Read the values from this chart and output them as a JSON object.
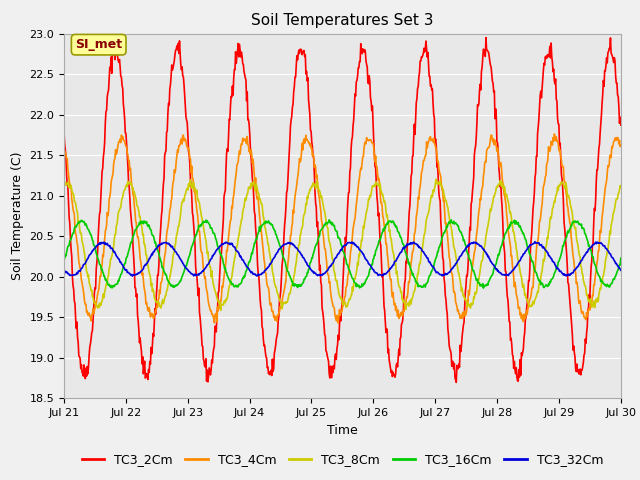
{
  "title": "Soil Temperatures Set 3",
  "xlabel": "Time",
  "ylabel": "Soil Temperature (C)",
  "ylim": [
    18.5,
    23.0
  ],
  "x_tick_labels": [
    "Jul 21",
    "Jul 22",
    "Jul 23",
    "Jul 24",
    "Jul 25",
    "Jul 26",
    "Jul 27",
    "Jul 28",
    "Jul 29",
    "Jul 30"
  ],
  "yticks": [
    18.5,
    19.0,
    19.5,
    20.0,
    20.5,
    21.0,
    21.5,
    22.0,
    22.5,
    23.0
  ],
  "series": [
    {
      "name": "TC3_2Cm",
      "color": "#ff0000",
      "amplitude": 2.0,
      "mean": 20.8,
      "phase_shift": 0.0,
      "linewidth": 1.2
    },
    {
      "name": "TC3_4Cm",
      "color": "#ff8c00",
      "amplitude": 1.1,
      "mean": 20.6,
      "phase_shift": 0.1,
      "linewidth": 1.2
    },
    {
      "name": "TC3_8Cm",
      "color": "#cccc00",
      "amplitude": 0.75,
      "mean": 20.4,
      "phase_shift": 0.22,
      "linewidth": 1.2
    },
    {
      "name": "TC3_16Cm",
      "color": "#00cc00",
      "amplitude": 0.4,
      "mean": 20.28,
      "phase_shift": 0.45,
      "linewidth": 1.2
    },
    {
      "name": "TC3_32Cm",
      "color": "#0000dd",
      "amplitude": 0.2,
      "mean": 20.22,
      "phase_shift": 0.8,
      "linewidth": 1.2
    }
  ],
  "annotation_text": "SI_met",
  "fig_facecolor": "#f0f0f0",
  "ax_facecolor": "#e8e8e8",
  "grid_color": "#ffffff",
  "title_fontsize": 11,
  "legend_fontsize": 9,
  "axis_label_fontsize": 9,
  "tick_fontsize": 8,
  "spine_color": "#aaaaaa"
}
